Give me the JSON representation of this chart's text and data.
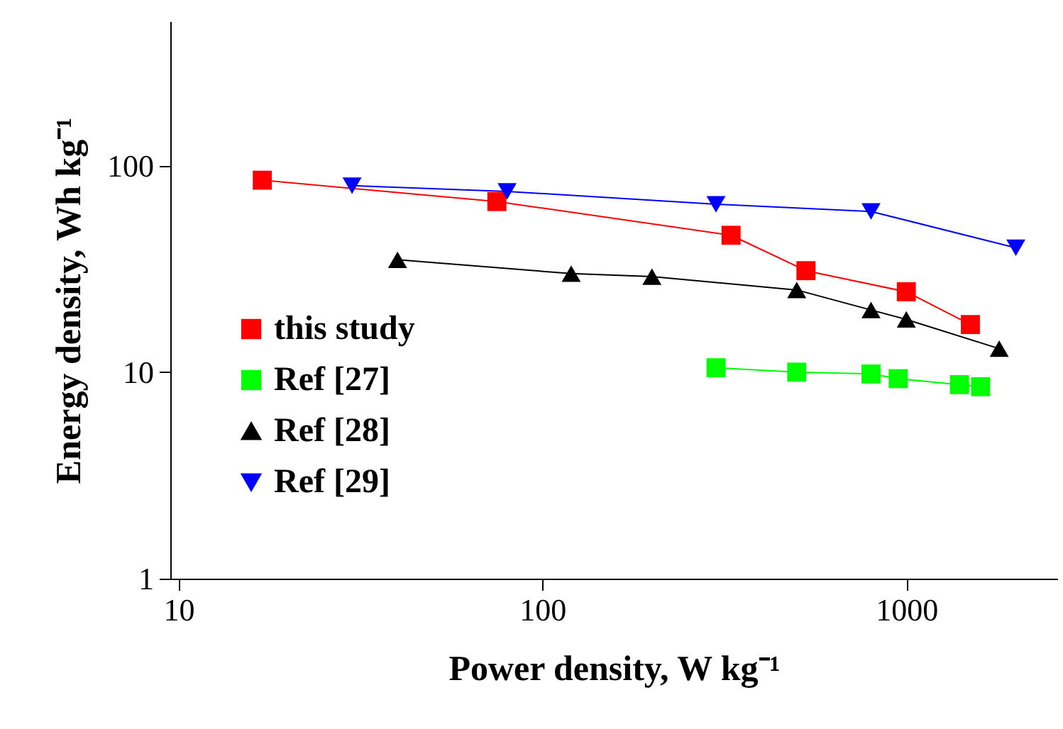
{
  "chart_data": {
    "type": "line",
    "xlabel": "Power density, W kg⁻¹",
    "ylabel": "Energy density, Wh kg⁻¹",
    "log": "xy",
    "xlim": [
      9.5,
      2600
    ],
    "ylim": [
      1,
      500
    ],
    "xticks": [
      10,
      100,
      1000
    ],
    "yticks": [
      1,
      10,
      100
    ],
    "grid": false,
    "legend": "bottom left",
    "line_style": "solid",
    "series": [
      {
        "name": "this study",
        "color": "#ff0000",
        "marker": "square",
        "x": [
          17,
          75,
          330,
          530,
          1000,
          1500
        ],
        "values": [
          85,
          67,
          46,
          31,
          24.5,
          17
        ]
      },
      {
        "name": "Ref [27]",
        "color": "#00ff00",
        "marker": "square",
        "x": [
          300,
          500,
          800,
          950,
          1400,
          1600
        ],
        "values": [
          10.5,
          10,
          9.8,
          9.3,
          8.7,
          8.5
        ]
      },
      {
        "name": "Ref [28]",
        "color": "#000000",
        "marker": "triangle",
        "x": [
          40,
          120,
          200,
          500,
          800,
          1000,
          1800
        ],
        "values": [
          35,
          30,
          29,
          25,
          20,
          18,
          13
        ]
      },
      {
        "name": "Ref [29]",
        "color": "#0000ff",
        "marker": "triangle-down",
        "x": [
          30,
          80,
          300,
          800,
          2000
        ],
        "values": [
          80,
          75,
          65,
          60,
          40
        ]
      }
    ]
  }
}
